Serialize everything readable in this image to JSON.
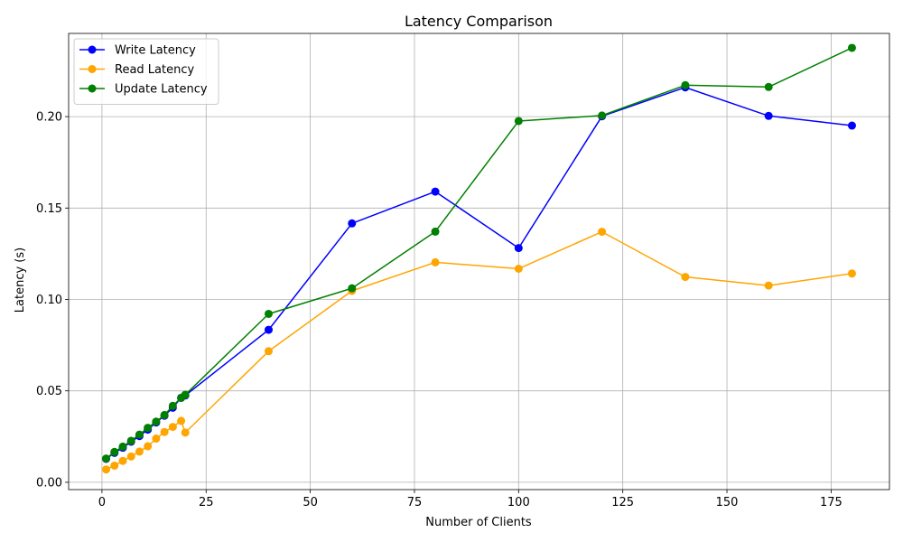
{
  "chart_data": {
    "type": "line",
    "title": "Latency Comparison",
    "xlabel": "Number of Clients",
    "ylabel": "Latency (s)",
    "xlim": [
      -8,
      189
    ],
    "ylim": [
      -0.004,
      0.2455
    ],
    "x_ticks": [
      0,
      25,
      50,
      75,
      100,
      125,
      150,
      175
    ],
    "x_tick_labels": [
      "0",
      "25",
      "50",
      "75",
      "100",
      "125",
      "150",
      "175"
    ],
    "y_ticks": [
      0.0,
      0.05,
      0.1,
      0.15,
      0.2
    ],
    "y_tick_labels": [
      "0.00",
      "0.05",
      "0.10",
      "0.15",
      "0.20"
    ],
    "grid": true,
    "legend_position": "top-left",
    "x": [
      1,
      3,
      5,
      7,
      9,
      11,
      13,
      15,
      17,
      19,
      20,
      40,
      60,
      80,
      100,
      120,
      140,
      160,
      180
    ],
    "series": [
      {
        "name": "Write Latency",
        "color": "#0000ff",
        "values": [
          0.0128,
          0.0161,
          0.0189,
          0.0222,
          0.0253,
          0.0288,
          0.0327,
          0.0364,
          0.0408,
          0.0462,
          0.0475,
          0.0834,
          0.1416,
          0.159,
          0.1281,
          0.2002,
          0.216,
          0.2004,
          0.1951
        ]
      },
      {
        "name": "Read Latency",
        "color": "#ffa500",
        "values": [
          0.007,
          0.0091,
          0.0117,
          0.0141,
          0.0168,
          0.0197,
          0.0239,
          0.0275,
          0.0303,
          0.0336,
          0.0272,
          0.0717,
          0.1047,
          0.1203,
          0.1168,
          0.137,
          0.1123,
          0.1076,
          0.1142
        ]
      },
      {
        "name": "Update Latency",
        "color": "#008000",
        "values": [
          0.013,
          0.0166,
          0.0195,
          0.0227,
          0.0261,
          0.0298,
          0.0332,
          0.0368,
          0.0418,
          0.0462,
          0.0479,
          0.0921,
          0.1061,
          0.1371,
          0.1976,
          0.2006,
          0.2172,
          0.2162,
          0.2376
        ]
      }
    ]
  }
}
